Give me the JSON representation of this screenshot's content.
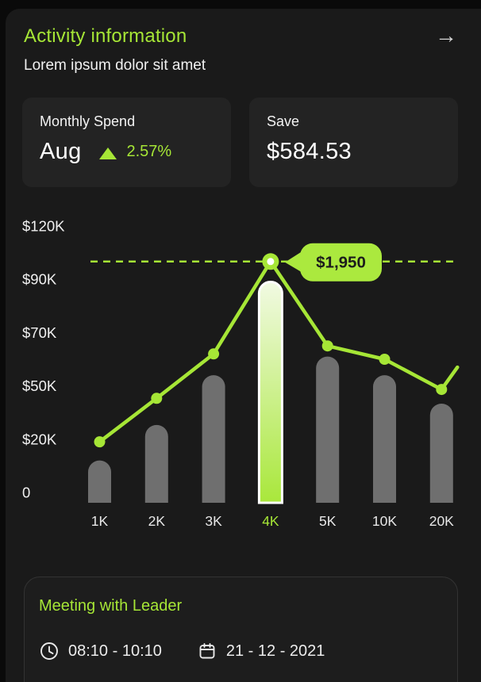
{
  "header": {
    "title": "Activity information",
    "subtitle": "Lorem ipsum dolor sit amet",
    "arrow_icon": "→"
  },
  "stats": {
    "monthly_spend": {
      "label": "Monthly Spend",
      "value": "Aug",
      "trend_direction": "up",
      "trend_value": "2.57%"
    },
    "save": {
      "label": "Save",
      "value": "$584.53"
    }
  },
  "chart_data": {
    "type": "bar+line",
    "categories": [
      "1K",
      "2K",
      "3K",
      "4K",
      "5K",
      "10K",
      "20K"
    ],
    "highlighted_category": "4K",
    "y_axis": {
      "units": "$K",
      "ticks": [
        {
          "label": "$120K",
          "value": 120
        },
        {
          "label": "$90K",
          "value": 90
        },
        {
          "label": "$70K",
          "value": 70
        },
        {
          "label": "$50K",
          "value": 50
        },
        {
          "label": "$20K",
          "value": 20
        },
        {
          "label": "0",
          "value": 0
        }
      ]
    },
    "series": [
      {
        "name": "spend-bars",
        "type": "bar",
        "values": [
          12,
          28,
          54,
          89,
          61,
          54,
          40
        ]
      },
      {
        "name": "spend-line",
        "type": "line",
        "values": [
          19,
          43,
          62,
          100,
          65,
          60,
          48
        ],
        "trailing_value": 57
      }
    ],
    "dashed_line_value": 100,
    "tooltip": {
      "text": "$1,950",
      "attached_category": "4K"
    },
    "legend": "none",
    "grid": "off"
  },
  "meeting": {
    "title": "Meeting with Leader",
    "time": "08:10 - 10:10",
    "date": "21 - 12 - 2021"
  },
  "colors": {
    "accent_green": "#a6e636",
    "background": "#1a1a1a",
    "card_background": "#232323",
    "bar_gray": "#6f6f6f",
    "highlight_gradient_top": "#f1fae2",
    "highlight_gradient_bottom": "#a9e73b",
    "tooltip_bg": "#abe93e",
    "tooltip_text": "#1c1c1c",
    "axis_text": "#f0f0f0"
  }
}
